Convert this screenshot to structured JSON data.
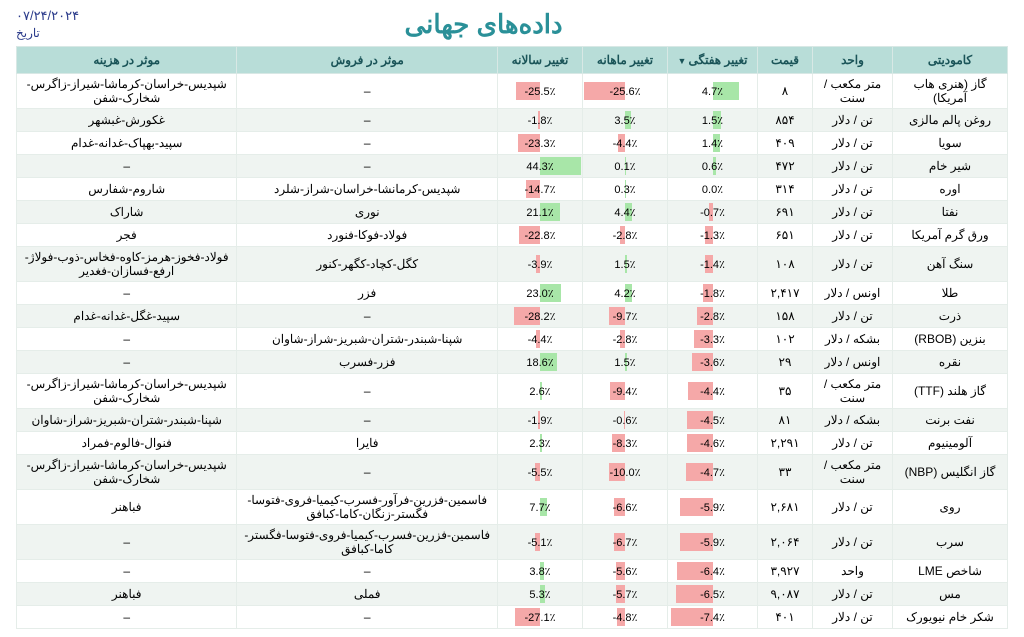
{
  "title": "داده‌های جهانی",
  "date": "۰۷/۲۴/۲۰۲۴",
  "dateLabel": "تاریخ",
  "colors": {
    "posBar": "#a8e6a8",
    "negBar": "#f5a8a8",
    "headerBg": "#b8ddd8"
  },
  "columns": [
    "کامودیتی",
    "واحد",
    "قیمت",
    "تغییر هفتگی",
    "تغییر ماهانه",
    "تغییر سالانه",
    "موثر در فروش",
    "موثر در هزینه"
  ],
  "barMax": {
    "wk": 8,
    "mo": 26,
    "yr": 45
  },
  "rows": [
    {
      "commodity": "گاز (هنری هاب آمریکا)",
      "unit": "متر مکعب / سنت",
      "price": "۸",
      "wk": 4.7,
      "mo": -25.6,
      "yr": -25.5,
      "sales": "–",
      "cost": "شپدیس-خراسان-کرماشا-شیراز-زاگرس-شخارک-شفن"
    },
    {
      "commodity": "روغن پالم مالزی",
      "unit": "تن / دلار",
      "price": "۸۵۴",
      "wk": 1.5,
      "mo": 3.5,
      "yr": -1.8,
      "sales": "–",
      "cost": "غکورش-غبشهر"
    },
    {
      "commodity": "سویا",
      "unit": "تن / دلار",
      "price": "۴۰۹",
      "wk": 1.4,
      "mo": -4.4,
      "yr": -23.3,
      "sales": "–",
      "cost": "سپید-بهپاک-غدانه-غدام"
    },
    {
      "commodity": "شیر خام",
      "unit": "تن / دلار",
      "price": "۴۷۲",
      "wk": 0.6,
      "mo": 0.1,
      "yr": 44.3,
      "sales": "–",
      "cost": "–"
    },
    {
      "commodity": "اوره",
      "unit": "تن / دلار",
      "price": "۳۱۴",
      "wk": 0.0,
      "mo": 0.3,
      "yr": -14.7,
      "sales": "شپدیس-کرمانشا-خراسان-شراز-شلرد",
      "cost": "شاروم-شفارس"
    },
    {
      "commodity": "نفتا",
      "unit": "تن / دلار",
      "price": "۶۹۱",
      "wk": -0.7,
      "mo": 4.4,
      "yr": 21.1,
      "sales": "نوری",
      "cost": "شاراک"
    },
    {
      "commodity": "ورق گرم آمریکا",
      "unit": "تن / دلار",
      "price": "۶۵۱",
      "wk": -1.3,
      "mo": -2.8,
      "yr": -22.8,
      "sales": "فولاد-فوکا-فنورد",
      "cost": "فجر"
    },
    {
      "commodity": "سنگ آهن",
      "unit": "تن / دلار",
      "price": "۱۰۸",
      "wk": -1.4,
      "mo": 1.5,
      "yr": -3.9,
      "sales": "کگل-کچاد-کگهر-کنور",
      "cost": "فولاد-فخوز-هرمز-کاوه-فخاس-ذوب-فولاژ-ارفع-فسازان-فغدیر"
    },
    {
      "commodity": "طلا",
      "unit": "اونس / دلار",
      "price": "۲,۴۱۷",
      "wk": -1.8,
      "mo": 4.2,
      "yr": 23.0,
      "sales": "فزر",
      "cost": "–"
    },
    {
      "commodity": "ذرت",
      "unit": "تن / دلار",
      "price": "۱۵۸",
      "wk": -2.8,
      "mo": -9.7,
      "yr": -28.2,
      "sales": "–",
      "cost": "سپید-غگل-غدانه-غدام"
    },
    {
      "commodity": "بنزین (RBOB)",
      "unit": "بشکه / دلار",
      "price": "۱۰۲",
      "wk": -3.3,
      "mo": -2.8,
      "yr": -4.4,
      "sales": "شپنا-شبندر-شتران-شبریز-شراز-شاوان",
      "cost": "–"
    },
    {
      "commodity": "نقره",
      "unit": "اونس / دلار",
      "price": "۲۹",
      "wk": -3.6,
      "mo": 1.5,
      "yr": 18.6,
      "sales": "فزر-فسرب",
      "cost": "–"
    },
    {
      "commodity": "گاز هلند (TTF)",
      "unit": "متر مکعب / سنت",
      "price": "۳۵",
      "wk": -4.4,
      "mo": -9.4,
      "yr": 2.6,
      "sales": "–",
      "cost": "شپدیس-خراسان-کرماشا-شیراز-زاگرس-شخارک-شفن"
    },
    {
      "commodity": "نفت برنت",
      "unit": "بشکه / دلار",
      "price": "۸۱",
      "wk": -4.5,
      "mo": -0.6,
      "yr": -1.9,
      "sales": "–",
      "cost": "شپنا-شبندر-شتران-شبریز-شراز-شاوان"
    },
    {
      "commodity": "آلومینیوم",
      "unit": "تن / دلار",
      "price": "۲,۲۹۱",
      "wk": -4.6,
      "mo": -8.3,
      "yr": 2.3,
      "sales": "فایرا",
      "cost": "فنوال-فالوم-فمراد"
    },
    {
      "commodity": "گاز انگلیس (NBP)",
      "unit": "متر مکعب / سنت",
      "price": "۳۳",
      "wk": -4.7,
      "mo": -10.0,
      "yr": -5.5,
      "sales": "–",
      "cost": "شپدیس-خراسان-کرماشا-شیراز-زاگرس-شخارک-شفن"
    },
    {
      "commodity": "روی",
      "unit": "تن / دلار",
      "price": "۲,۶۸۱",
      "wk": -5.9,
      "mo": -6.6,
      "yr": 7.7,
      "sales": "فاسمین-فزرین-فرآور-فسرب-کیمیا-فروی-فتوسا-فگستر-زنگان-کاما-کبافق",
      "cost": "فباهنر"
    },
    {
      "commodity": "سرب",
      "unit": "تن / دلار",
      "price": "۲,۰۶۴",
      "wk": -5.9,
      "mo": -6.7,
      "yr": -5.1,
      "sales": "فاسمین-فزرین-فسرب-کیمیا-فروی-فتوسا-فگستر-کاما-کبافق",
      "cost": "–"
    },
    {
      "commodity": "شاخص LME",
      "unit": "واحد",
      "price": "۳,۹۲۷",
      "wk": -6.4,
      "mo": -5.6,
      "yr": 3.8,
      "sales": "–",
      "cost": "–"
    },
    {
      "commodity": "مس",
      "unit": "تن / دلار",
      "price": "۹,۰۸۷",
      "wk": -6.5,
      "mo": -5.7,
      "yr": 5.3,
      "sales": "فملی",
      "cost": "فباهنر"
    },
    {
      "commodity": "شکر خام نیویورک",
      "unit": "تن / دلار",
      "price": "۴۰۱",
      "wk": -7.4,
      "mo": -4.8,
      "yr": -27.1,
      "sales": "–",
      "cost": "–"
    }
  ]
}
